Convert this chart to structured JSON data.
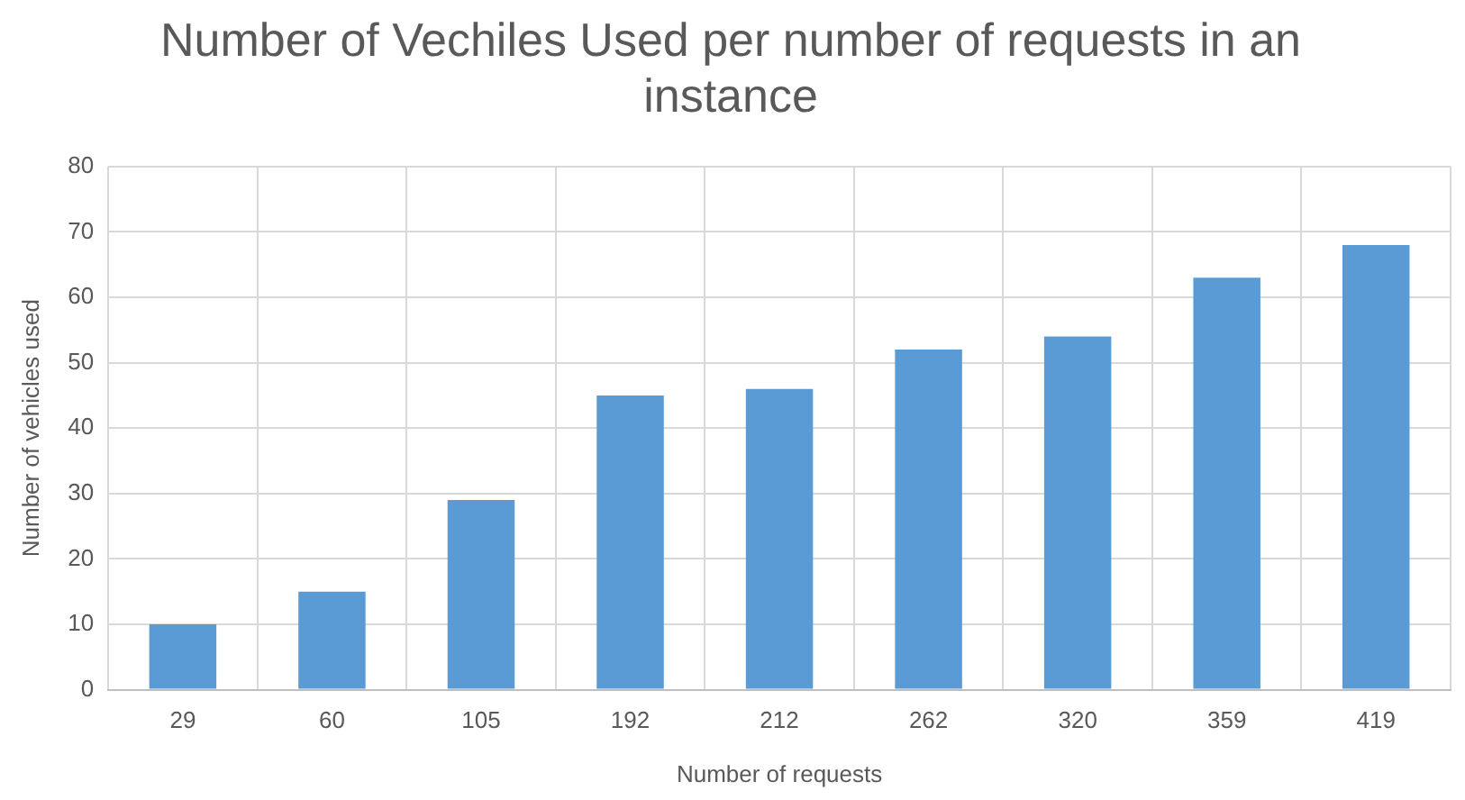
{
  "chart_data": {
    "type": "bar",
    "title": "Number of Vechiles Used per number of requests in an instance",
    "xlabel": "Number of requests",
    "ylabel": "Number of vehicles used",
    "categories": [
      "29",
      "60",
      "105",
      "192",
      "212",
      "262",
      "320",
      "359",
      "419"
    ],
    "values": [
      10,
      15,
      29,
      45,
      46,
      52,
      54,
      63,
      68
    ],
    "color": "#5b9bd5",
    "ylim": [
      0,
      80
    ],
    "yticks": [
      0,
      10,
      20,
      30,
      40,
      50,
      60,
      70,
      80
    ],
    "grid": true,
    "legend": false
  }
}
